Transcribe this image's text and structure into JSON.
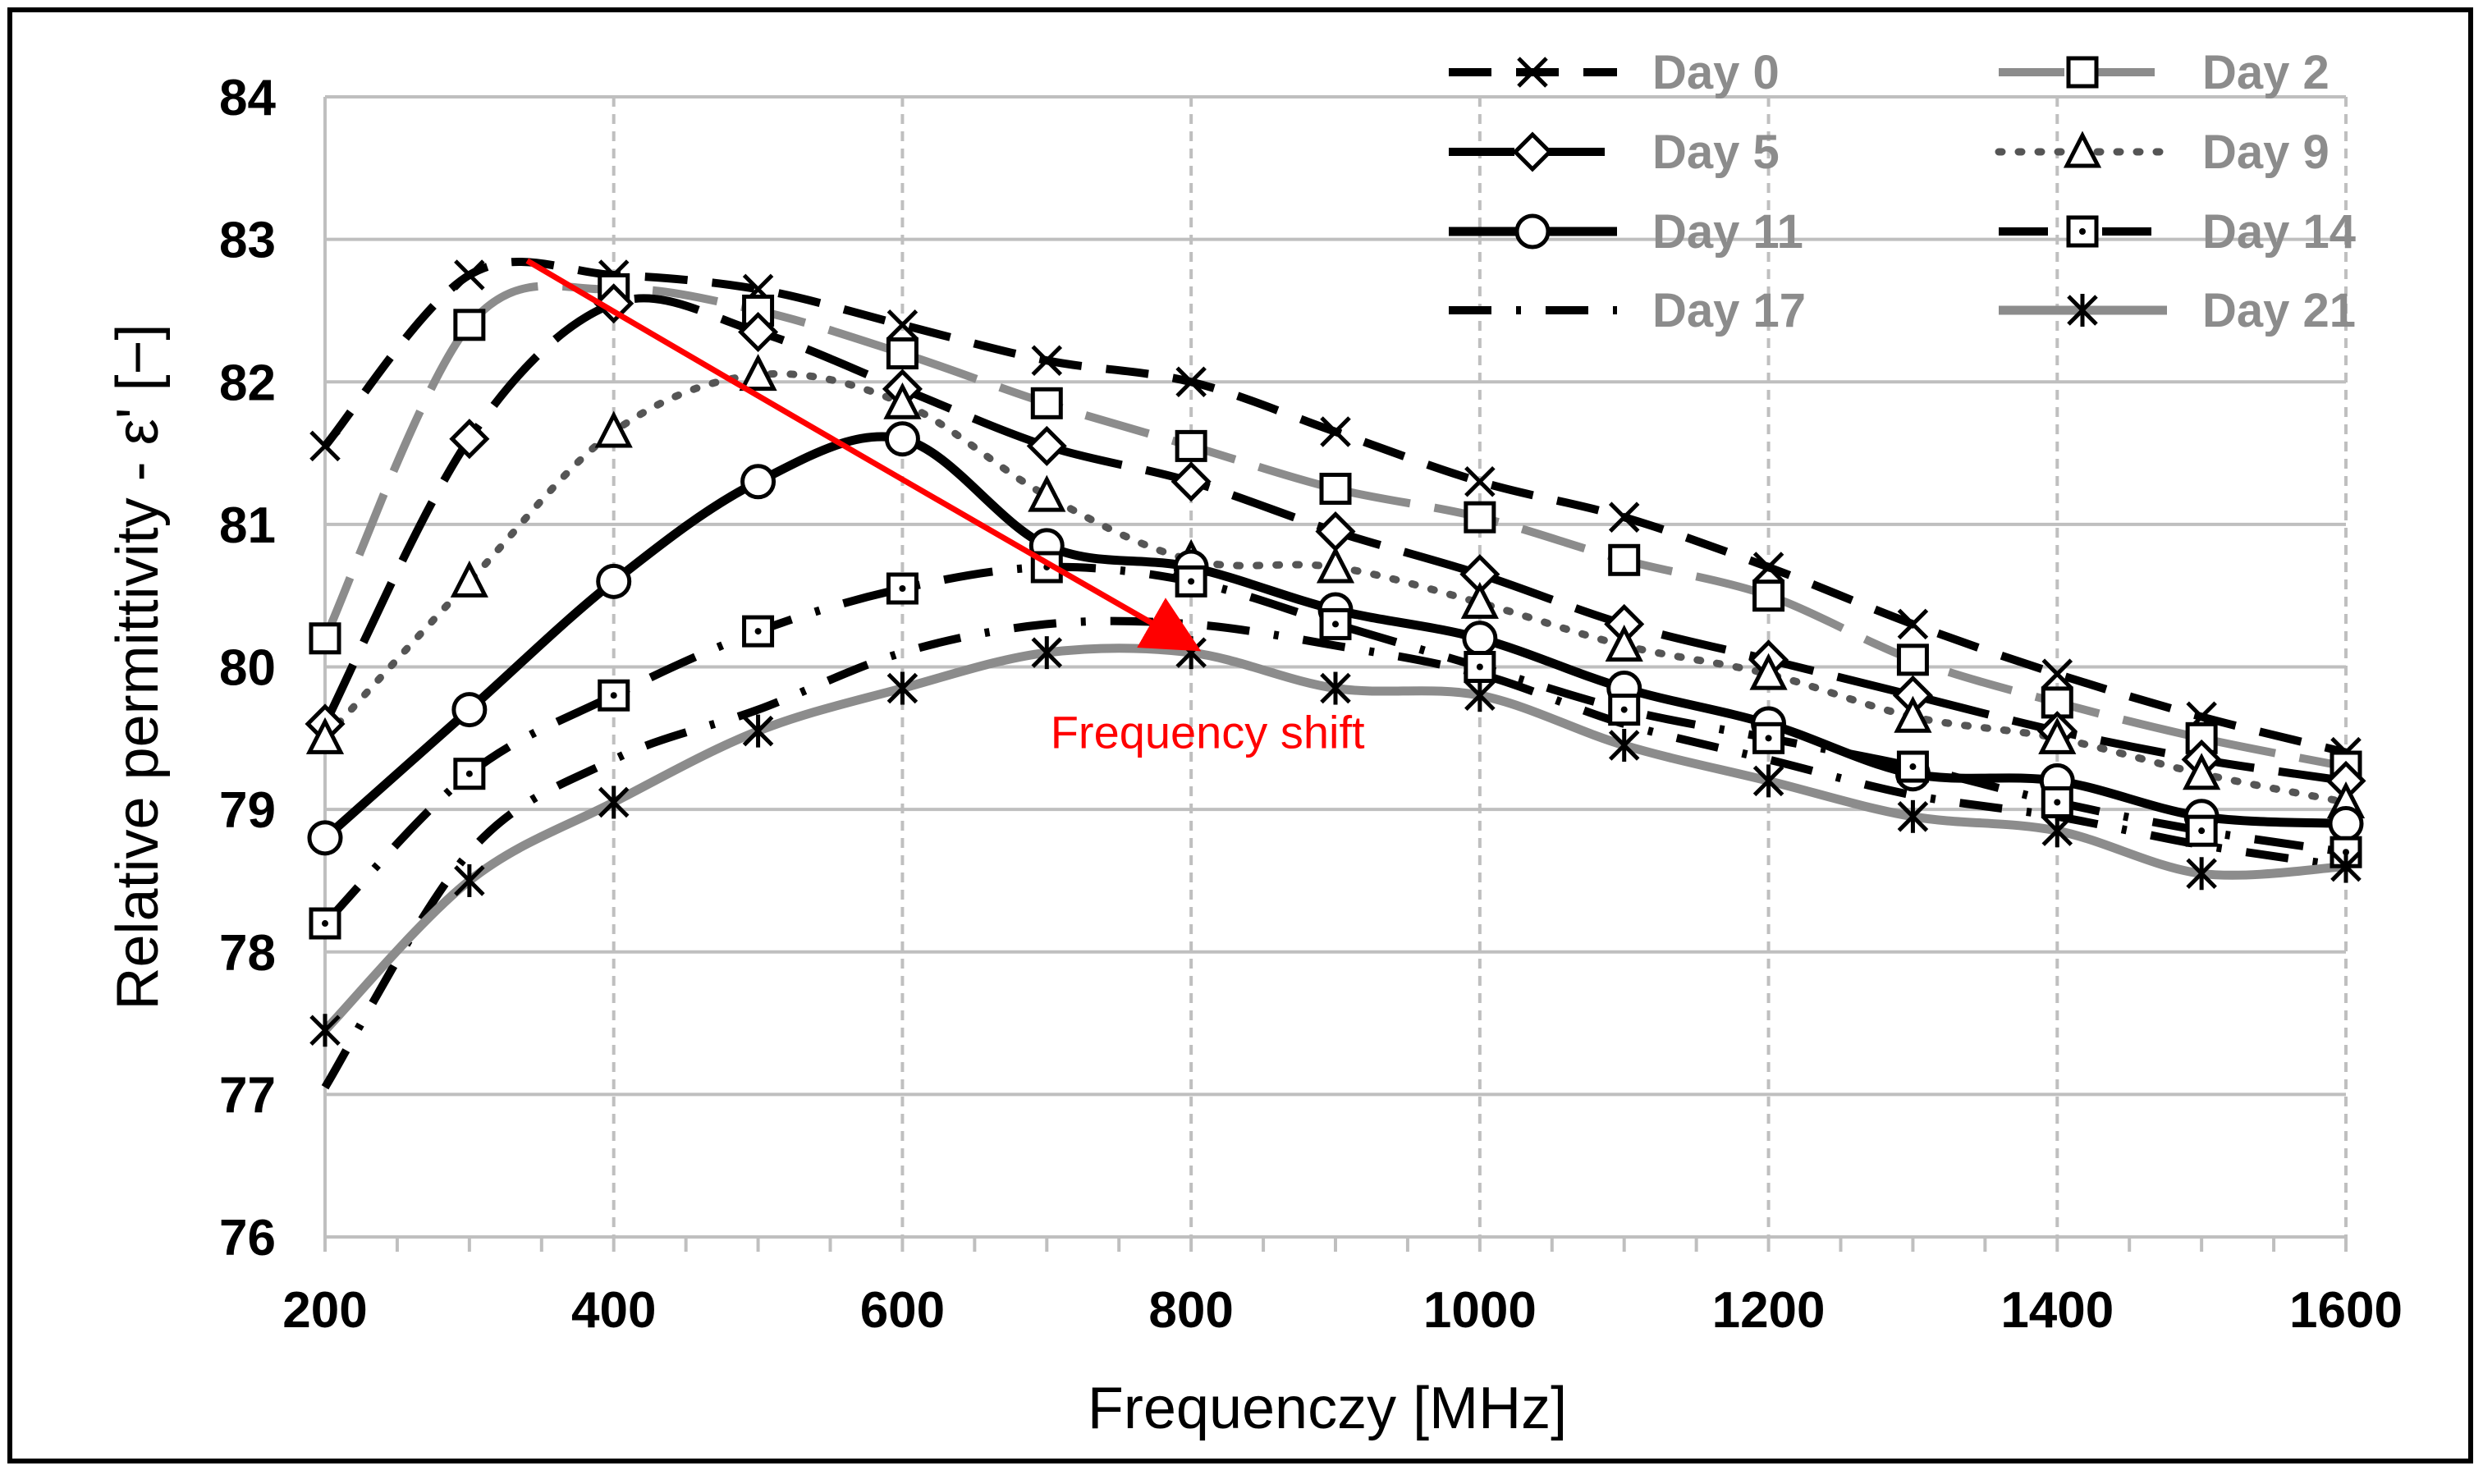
{
  "chart_data": {
    "type": "line",
    "title": "",
    "xlabel": "Frequenczy [MHz]",
    "ylabel": "Relative permittivity - ε' [−]",
    "xlim": [
      200,
      1600
    ],
    "ylim": [
      76,
      84
    ],
    "xticks": [
      200,
      400,
      600,
      800,
      1000,
      1200,
      1400,
      1600
    ],
    "yticks": [
      76,
      77,
      78,
      79,
      80,
      81,
      82,
      83,
      84
    ],
    "x": [
      200,
      300,
      400,
      500,
      600,
      700,
      800,
      900,
      1000,
      1100,
      1200,
      1300,
      1400,
      1500,
      1600
    ],
    "grid": true,
    "legend_position": "top-right",
    "series": [
      {
        "name": "Day 0",
        "color": "#000000",
        "dash": "dash",
        "marker": "x",
        "values": [
          81.55,
          82.75,
          82.75,
          82.65,
          82.4,
          82.15,
          82.0,
          81.65,
          81.3,
          81.05,
          80.7,
          80.3,
          79.95,
          79.65,
          79.4
        ]
      },
      {
        "name": "Day 2",
        "color": "#8c8c8c",
        "dash": "longdash",
        "marker": "square",
        "values": [
          80.2,
          82.4,
          82.65,
          82.5,
          82.2,
          81.85,
          81.55,
          81.25,
          81.05,
          80.75,
          80.5,
          80.05,
          79.75,
          79.5,
          79.3
        ]
      },
      {
        "name": "Day 5",
        "color": "#000000",
        "dash": "longdash",
        "marker": "diamond",
        "values": [
          79.6,
          81.6,
          82.55,
          82.35,
          81.95,
          81.55,
          81.3,
          80.95,
          80.65,
          80.3,
          80.05,
          79.8,
          79.55,
          79.35,
          79.2
        ]
      },
      {
        "name": "Day 9",
        "color": "#555555",
        "dash": "dot",
        "marker": "triangle",
        "values": [
          79.5,
          80.6,
          81.65,
          82.05,
          81.85,
          81.2,
          80.75,
          80.7,
          80.45,
          80.15,
          79.95,
          79.65,
          79.5,
          79.25,
          79.05
        ]
      },
      {
        "name": "Day 11",
        "color": "#000000",
        "dash": "solid",
        "marker": "circle",
        "values": [
          78.8,
          79.7,
          80.6,
          81.3,
          81.6,
          80.85,
          80.7,
          80.4,
          80.2,
          79.85,
          79.6,
          79.25,
          79.2,
          78.95,
          78.9
        ]
      },
      {
        "name": "Day 14",
        "color": "#000000",
        "dash": "dashdot",
        "marker": "square-dot",
        "values": [
          78.2,
          79.25,
          79.8,
          80.25,
          80.55,
          80.7,
          80.6,
          80.3,
          80.0,
          79.7,
          79.5,
          79.3,
          79.05,
          78.85,
          78.7
        ]
      },
      {
        "name": "Day 17",
        "color": "#000000",
        "dash": "dashdot2",
        "marker": "none",
        "values": [
          77.05,
          78.7,
          79.35,
          79.7,
          80.1,
          80.3,
          80.3,
          80.15,
          79.95,
          79.6,
          79.35,
          79.1,
          78.95,
          78.75,
          78.6
        ]
      },
      {
        "name": "Day 21",
        "color": "#8c8c8c",
        "dash": "solid",
        "marker": "asterisk",
        "values": [
          77.45,
          78.5,
          79.05,
          79.55,
          79.85,
          80.1,
          80.1,
          79.85,
          79.8,
          79.45,
          79.2,
          78.95,
          78.85,
          78.55,
          78.6
        ]
      }
    ],
    "annotations": [
      {
        "text": "Frequency shift",
        "color": "#ff0000",
        "arrow_from": [
          340,
          82.85
        ],
        "arrow_to": [
          800,
          80.15
        ]
      }
    ]
  }
}
